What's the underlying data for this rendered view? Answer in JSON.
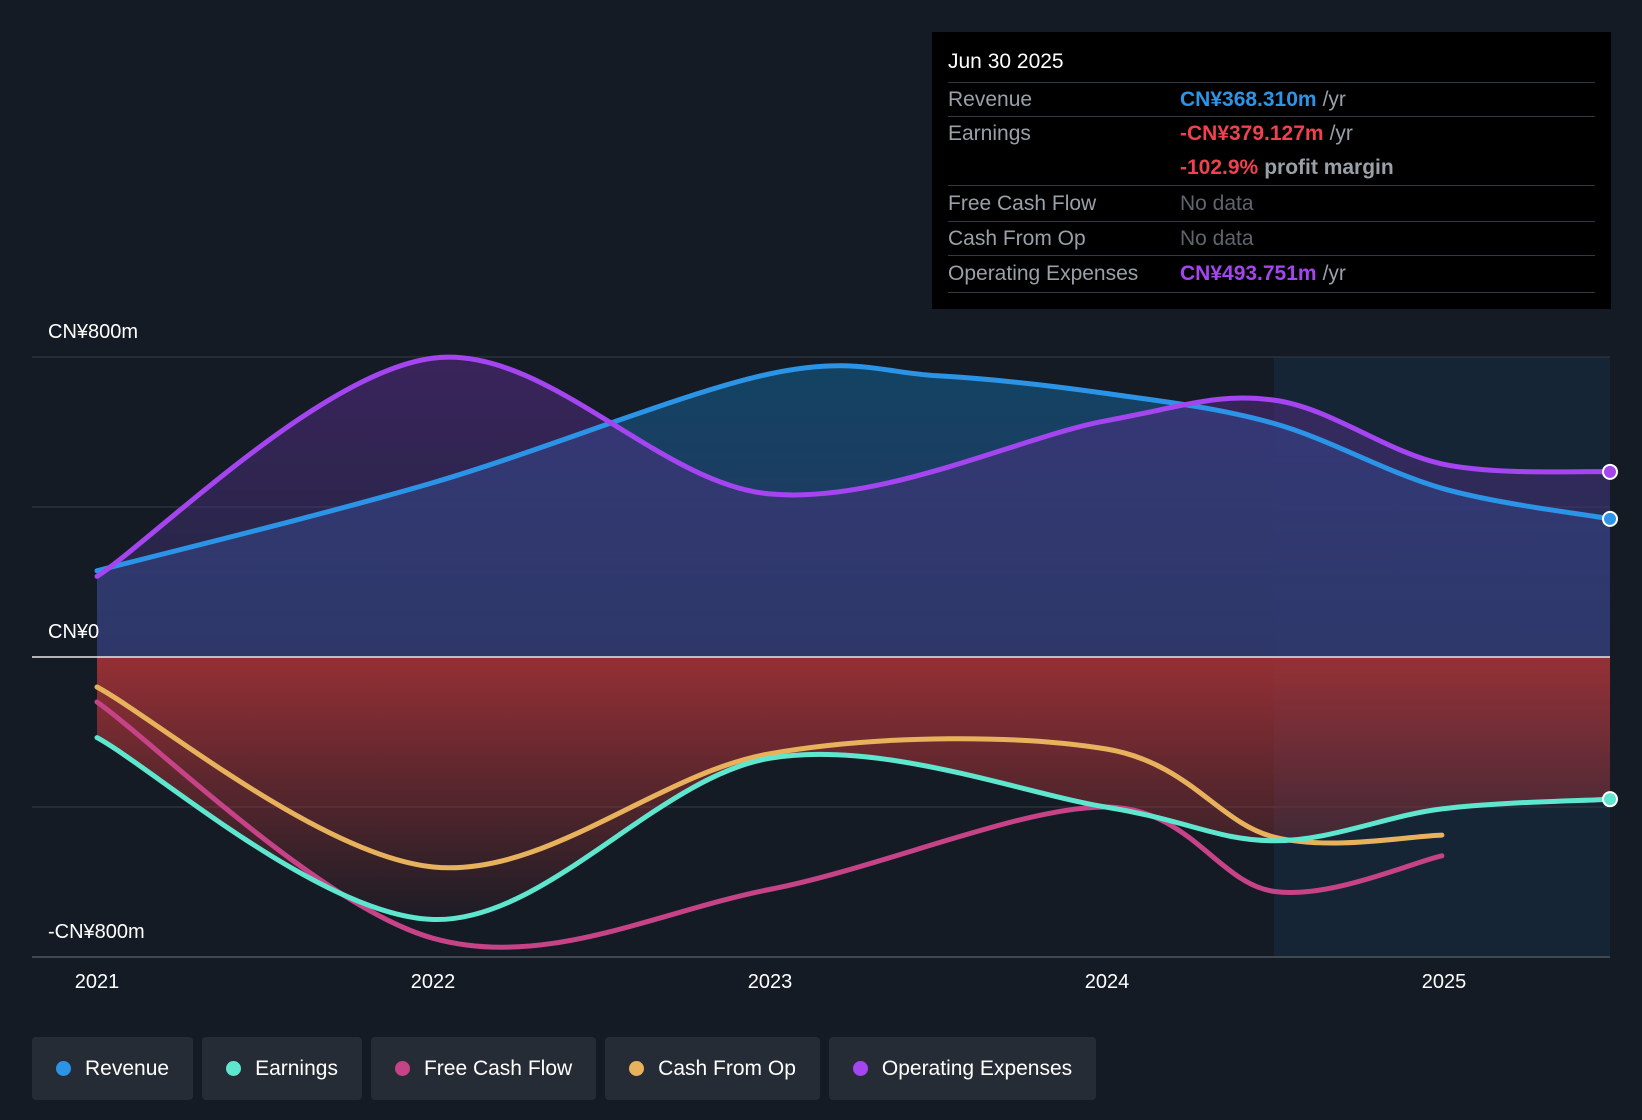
{
  "tooltip": {
    "date": "Jun 30 2025",
    "revenue_label": "Revenue",
    "revenue_value": "CN¥368.310m",
    "revenue_unit": "/yr",
    "earnings_label": "Earnings",
    "earnings_value": "-CN¥379.127m",
    "earnings_unit": "/yr",
    "margin_value": "-102.9%",
    "margin_unit": "profit margin",
    "fcf_label": "Free Cash Flow",
    "fcf_value": "No data",
    "cfo_label": "Cash From Op",
    "cfo_value": "No data",
    "opex_label": "Operating Expenses",
    "opex_value": "CN¥493.751m",
    "opex_unit": "/yr"
  },
  "legend": [
    "Revenue",
    "Earnings",
    "Free Cash Flow",
    "Cash From Op",
    "Operating Expenses"
  ],
  "colors": {
    "background": "#151b24",
    "revenue": "#2b94e6",
    "earnings": "#5ee6cf",
    "free_cash_flow": "#c64387",
    "cash_from_op": "#e8b25c",
    "operating_expenses": "#a445f0",
    "loss_fill": "#9c3136",
    "earnings_text": "#f0414f"
  },
  "chart_data": {
    "type": "area",
    "x_ticks": [
      "2021",
      "2022",
      "2023",
      "2024",
      "2025"
    ],
    "y_labels": [
      "CN¥800m",
      "CN¥0",
      "-CN¥800m"
    ],
    "ylim": [
      -800,
      800
    ],
    "xlim": [
      2021.0,
      2025.5
    ],
    "forecast_shade_from": 2024.5,
    "series": [
      {
        "name": "Revenue",
        "key": "revenue",
        "points": [
          [
            2021.0,
            230
          ],
          [
            2022.0,
            465
          ],
          [
            2023.0,
            755
          ],
          [
            2023.5,
            750
          ],
          [
            2024.0,
            703
          ],
          [
            2024.5,
            623
          ],
          [
            2025.0,
            450
          ],
          [
            2025.5,
            368.31
          ]
        ]
      },
      {
        "name": "Operating Expenses",
        "key": "operating_expenses",
        "points": [
          [
            2021.0,
            215
          ],
          [
            2022.0,
            797
          ],
          [
            2023.0,
            435
          ],
          [
            2024.0,
            630
          ],
          [
            2024.5,
            685
          ],
          [
            2025.0,
            515
          ],
          [
            2025.5,
            493.75
          ]
        ]
      },
      {
        "name": "Earnings",
        "key": "earnings",
        "points": [
          [
            2021.0,
            -215
          ],
          [
            2022.0,
            -700
          ],
          [
            2023.0,
            -270
          ],
          [
            2024.0,
            -400
          ],
          [
            2024.5,
            -490
          ],
          [
            2025.0,
            -405
          ],
          [
            2025.5,
            -379.13
          ]
        ]
      },
      {
        "name": "Free Cash Flow",
        "key": "free_cash_flow",
        "points": [
          [
            2021.0,
            -120
          ],
          [
            2022.0,
            -750
          ],
          [
            2023.0,
            -620
          ],
          [
            2024.0,
            -400
          ],
          [
            2024.5,
            -625
          ],
          [
            2025.0,
            -530
          ]
        ]
      },
      {
        "name": "Cash From Op",
        "key": "cash_from_op",
        "points": [
          [
            2021.0,
            -80
          ],
          [
            2022.0,
            -560
          ],
          [
            2023.0,
            -258
          ],
          [
            2024.0,
            -245
          ],
          [
            2024.5,
            -480
          ],
          [
            2025.0,
            -475
          ]
        ]
      }
    ]
  }
}
